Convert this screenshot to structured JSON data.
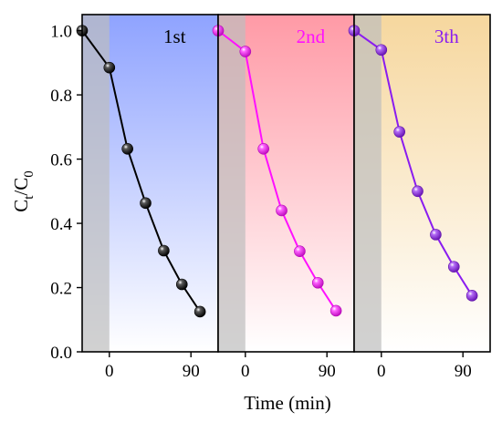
{
  "chart_data": {
    "type": "scatter",
    "ylabel": {
      "main": "C",
      "sub1": "t",
      "slash": "/C",
      "sub2": "0"
    },
    "xlabel": "Time (min)",
    "ylim": [
      0,
      1.05
    ],
    "yticks": [
      0.0,
      0.2,
      0.4,
      0.6,
      0.8,
      1.0
    ],
    "ytick_labels": [
      "0.0",
      "0.2",
      "0.4",
      "0.6",
      "0.8",
      "1.0"
    ],
    "grid": false,
    "panels": [
      {
        "label": "1st",
        "color": "#000000",
        "label_color": "#000000",
        "bg_color": "#8fa3ff",
        "xlim": [
          -30,
          120
        ],
        "dark_region": [
          -30,
          0
        ],
        "xticks": [
          0,
          90
        ],
        "xtick_labels": [
          "0",
          "90"
        ],
        "x": [
          -30,
          0,
          20,
          40,
          60,
          80,
          100
        ],
        "y": [
          1.0,
          0.885,
          0.632,
          0.463,
          0.315,
          0.21,
          0.125
        ]
      },
      {
        "label": "2nd",
        "color": "#ff10ff",
        "label_color": "#ff10ff",
        "bg_color": "#ff9aa6",
        "xlim": [
          -30,
          120
        ],
        "dark_region": [
          -30,
          0
        ],
        "xticks": [
          0,
          90
        ],
        "xtick_labels": [
          "0",
          "90"
        ],
        "x": [
          -30,
          0,
          20,
          40,
          60,
          80,
          100
        ],
        "y": [
          1.0,
          0.935,
          0.632,
          0.44,
          0.313,
          0.215,
          0.128
        ]
      },
      {
        "label": "3th",
        "color": "#8a1cf0",
        "label_color": "#8a1cf0",
        "bg_color": "#f6d79e",
        "xlim": [
          -30,
          120
        ],
        "dark_region": [
          -30,
          0
        ],
        "xticks": [
          0,
          90
        ],
        "xtick_labels": [
          "0",
          "90"
        ],
        "x": [
          -30,
          0,
          20,
          40,
          60,
          80,
          100
        ],
        "y": [
          1.0,
          0.94,
          0.685,
          0.5,
          0.365,
          0.265,
          0.175
        ]
      }
    ]
  }
}
